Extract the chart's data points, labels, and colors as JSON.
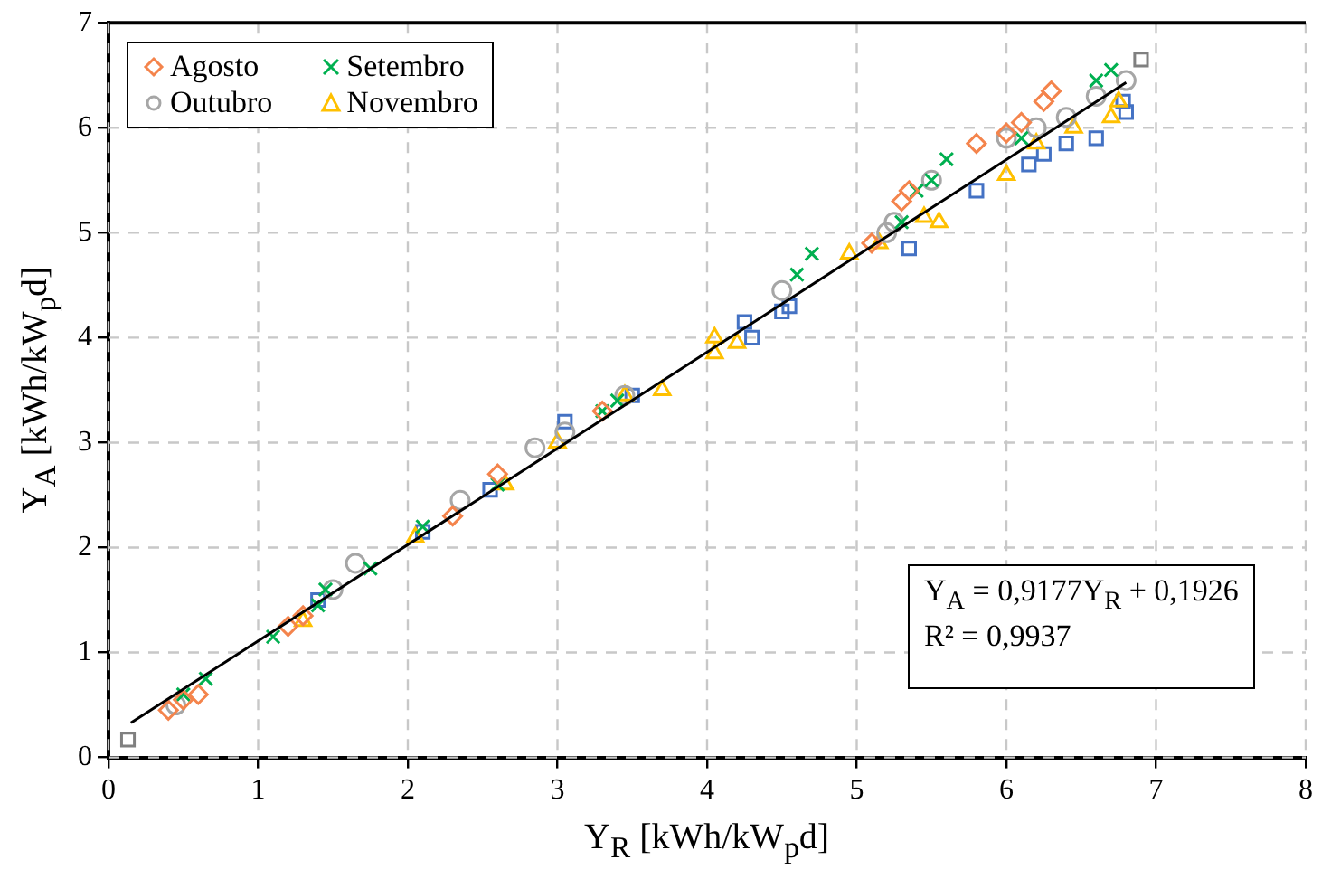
{
  "chart_data": {
    "type": "scatter",
    "xlabel": "Y$_{R}$  [kWh/kW$_{p}$d]",
    "ylabel": "Y$_{A}$ [kWh/kW$_{p}$d]",
    "xlim": [
      0,
      8
    ],
    "xticks": [
      0,
      1,
      2,
      3,
      4,
      5,
      6,
      7,
      8
    ],
    "ylim": [
      0,
      7
    ],
    "yticks": [
      0,
      1,
      2,
      3,
      4,
      5,
      6,
      7
    ],
    "grid": true,
    "legend": "top left",
    "annotations": [
      "Y$_{A}$ = 0,9177Y$_{R}$ + 0,1926",
      "R² = 0,9937"
    ],
    "series": [
      {
        "name": "Agosto",
        "color": "#f4844c",
        "marker": "diamond",
        "x": [
          0.4,
          0.5,
          0.6,
          1.2,
          1.3,
          2.3,
          2.6,
          3.3,
          5.1,
          5.3,
          5.35,
          5.8,
          6.0,
          6.1,
          6.25,
          6.3
        ],
        "values": [
          0.45,
          0.55,
          0.6,
          1.25,
          1.35,
          2.3,
          2.7,
          3.3,
          4.9,
          5.3,
          5.4,
          5.85,
          5.95,
          6.05,
          6.25,
          6.35
        ]
      },
      {
        "name": "Setembro",
        "color": "#00b050",
        "marker": "cross",
        "x": [
          0.5,
          0.65,
          1.1,
          1.4,
          1.45,
          1.75,
          2.1,
          2.6,
          3.3,
          3.4,
          4.6,
          4.7,
          5.3,
          5.4,
          5.5,
          5.6,
          6.1,
          6.6,
          6.7
        ],
        "values": [
          0.6,
          0.75,
          1.15,
          1.45,
          1.6,
          1.8,
          2.2,
          2.6,
          3.3,
          3.4,
          4.6,
          4.8,
          5.1,
          5.4,
          5.5,
          5.7,
          5.9,
          6.45,
          6.55
        ]
      },
      {
        "name": "Outubro",
        "color": "#a6a6a6",
        "marker": "circle",
        "x": [
          0.45,
          1.5,
          1.65,
          2.35,
          2.85,
          3.05,
          3.45,
          4.5,
          5.2,
          5.25,
          5.5,
          6.0,
          6.2,
          6.4,
          6.6,
          6.8
        ],
        "values": [
          0.5,
          1.6,
          1.85,
          2.45,
          2.95,
          3.1,
          3.45,
          4.45,
          5.0,
          5.1,
          5.5,
          5.9,
          6.0,
          6.1,
          6.3,
          6.45
        ]
      },
      {
        "name": "Novembro",
        "color": "#ffc000",
        "marker": "triangle",
        "x": [
          1.3,
          2.05,
          2.65,
          3.0,
          3.45,
          3.7,
          4.05,
          4.05,
          4.2,
          4.95,
          5.15,
          5.45,
          5.55,
          6.0,
          6.2,
          6.45,
          6.7,
          6.75
        ],
        "values": [
          1.3,
          2.1,
          2.6,
          3.0,
          3.45,
          3.5,
          3.85,
          4.0,
          3.95,
          4.8,
          4.9,
          5.15,
          5.1,
          5.55,
          5.85,
          6.0,
          6.1,
          6.25
        ]
      },
      {
        "color": "#4472c4",
        "marker": "square",
        "x": [
          1.4,
          2.1,
          2.55,
          3.05,
          3.5,
          4.25,
          4.3,
          4.5,
          4.55,
          5.35,
          5.8,
          6.15,
          6.25,
          6.4,
          6.6,
          6.78,
          6.8
        ],
        "values": [
          1.5,
          2.15,
          2.55,
          3.2,
          3.45,
          4.15,
          4.0,
          4.25,
          4.3,
          4.85,
          5.4,
          5.65,
          5.75,
          5.85,
          5.9,
          6.25,
          6.15
        ]
      },
      {
        "color": "#808080",
        "marker": "square",
        "x": [
          0.13,
          6.9
        ],
        "values": [
          0.17,
          6.65
        ]
      },
      {
        "type": "line",
        "color": "#000000",
        "marker": "none",
        "line_style": "solid",
        "x": [
          0.15,
          6.8
        ],
        "values": [
          0.33,
          6.43
        ]
      }
    ]
  }
}
